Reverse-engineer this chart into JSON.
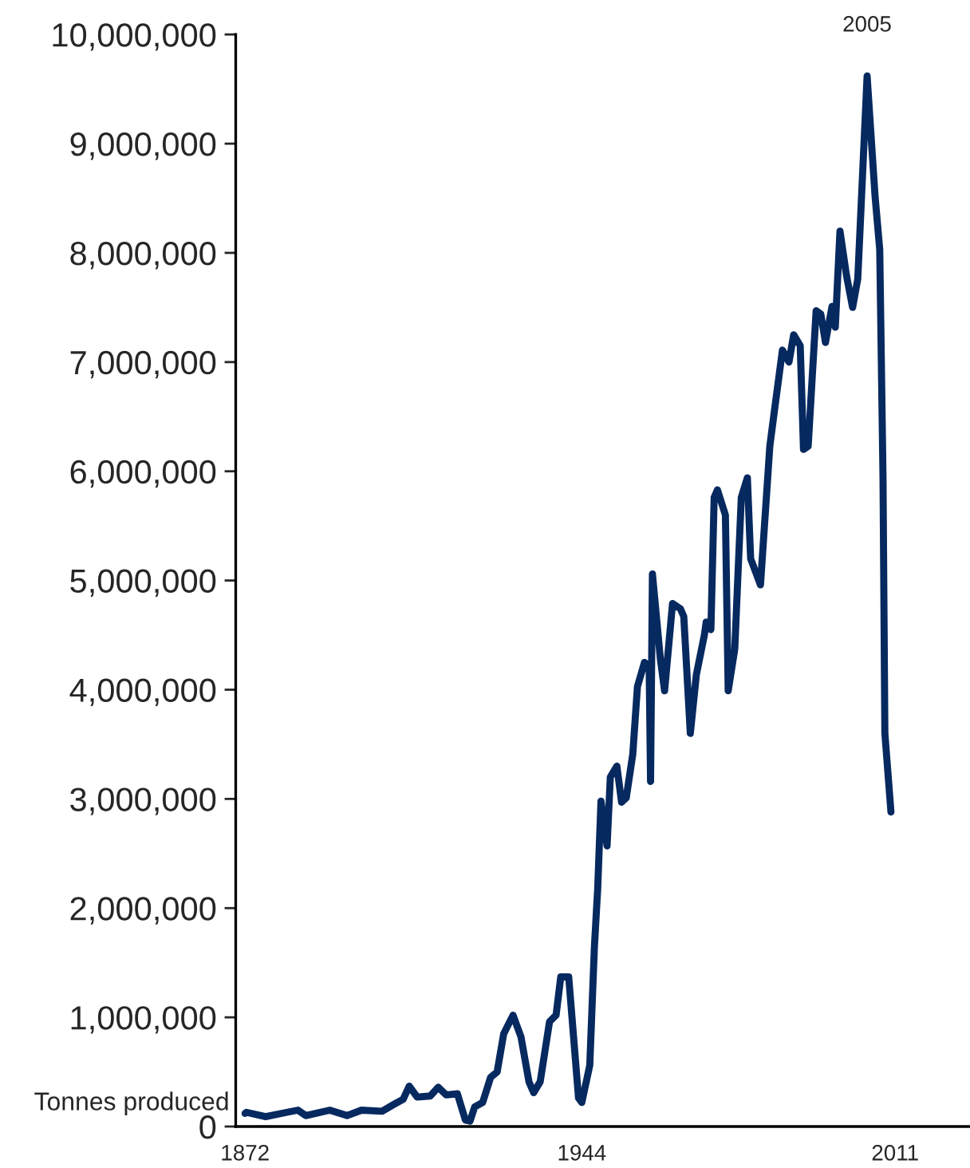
{
  "chart_data": {
    "type": "line",
    "ylabel": "Tonnes produced",
    "annotations": [
      {
        "text": "2005",
        "x": 2005,
        "y": 9620000
      }
    ],
    "xlim": [
      1870,
      2027
    ],
    "xticks": [
      1872,
      1944,
      2011
    ],
    "ylim": [
      0,
      10000000
    ],
    "yticks": [
      {
        "value": 0,
        "label": "0"
      },
      {
        "value": 1000000,
        "label": "1,000,000"
      },
      {
        "value": 2000000,
        "label": "2,000,000"
      },
      {
        "value": 3000000,
        "label": "3,000,000"
      },
      {
        "value": 4000000,
        "label": "4,000,000"
      },
      {
        "value": 5000000,
        "label": "5,000,000"
      },
      {
        "value": 6000000,
        "label": "6,000,000"
      },
      {
        "value": 7000000,
        "label": "7,000,000"
      },
      {
        "value": 8000000,
        "label": "8,000,000"
      },
      {
        "value": 9000000,
        "label": "9,000,000"
      },
      {
        "value": 10000000,
        "label": "10,000,000"
      }
    ],
    "grid": false,
    "legend": false,
    "marker": "none",
    "line_style": "solid",
    "series": [
      {
        "color": "#06295f",
        "x": [
          1872,
          1872.3,
          1876.4,
          1880.9,
          1883.3,
          1885.0,
          1890.1,
          1893.8,
          1896.9,
          1901.3,
          1903.7,
          1905.8,
          1907.1,
          1908.8,
          1911.6,
          1913.3,
          1915.0,
          1917.4,
          1919.1,
          1920.1,
          1921.1,
          1922.8,
          1924.5,
          1925.9,
          1927.3,
          1929.3,
          1931.0,
          1932.7,
          1933.7,
          1935.1,
          1937.1,
          1938.5,
          1939.5,
          1941.2,
          1943.3,
          1944.0,
          1945.7,
          1946.7,
          1947.4,
          1948.1,
          1949.4,
          1950.1,
          1951.5,
          1952.5,
          1953.5,
          1954.9,
          1955.9,
          1957.4,
          1958.4,
          1958.7,
          1959.1,
          1960.8,
          1961.7,
          1963.4,
          1965.1,
          1965.8,
          1967.2,
          1968.5,
          1970.2,
          1970.6,
          1971.6,
          1972.3,
          1973.0,
          1974.7,
          1975.3,
          1976.7,
          1978.1,
          1979.4,
          1980.1,
          1982.2,
          1984.2,
          1985.2,
          1986.9,
          1988.3,
          1989.3,
          1990.7,
          1991.4,
          1992.4,
          1994.1,
          1995.1,
          1996.1,
          1997.5,
          1998.2,
          1999.2,
          2000.6,
          2001.9,
          2003.0,
          2005.0,
          2006.7,
          2007.7,
          2008.4,
          2008.8,
          2010.1
        ],
        "values": [
          120000,
          130000,
          90000,
          130000,
          150000,
          100000,
          150000,
          100000,
          150000,
          140000,
          200000,
          250000,
          370000,
          270000,
          280000,
          360000,
          290000,
          300000,
          60000,
          50000,
          180000,
          220000,
          450000,
          500000,
          850000,
          1020000,
          820000,
          410000,
          310000,
          410000,
          960000,
          1020000,
          1370000,
          1370000,
          260000,
          220000,
          560000,
          1650000,
          2180000,
          2980000,
          2570000,
          3200000,
          3300000,
          2970000,
          3010000,
          3410000,
          4030000,
          4250000,
          4220000,
          3160000,
          5060000,
          4280000,
          3990000,
          4790000,
          4740000,
          4670000,
          3600000,
          4140000,
          4500000,
          4620000,
          4550000,
          5760000,
          5830000,
          5600000,
          3990000,
          4370000,
          5760000,
          5940000,
          5200000,
          4960000,
          6230000,
          6560000,
          7110000,
          7000000,
          7250000,
          7150000,
          6200000,
          6230000,
          7470000,
          7440000,
          7180000,
          7510000,
          7320000,
          8200000,
          7790000,
          7500000,
          7760000,
          9620000,
          8520000,
          8030000,
          5940000,
          3600000,
          2880000
        ]
      }
    ]
  }
}
